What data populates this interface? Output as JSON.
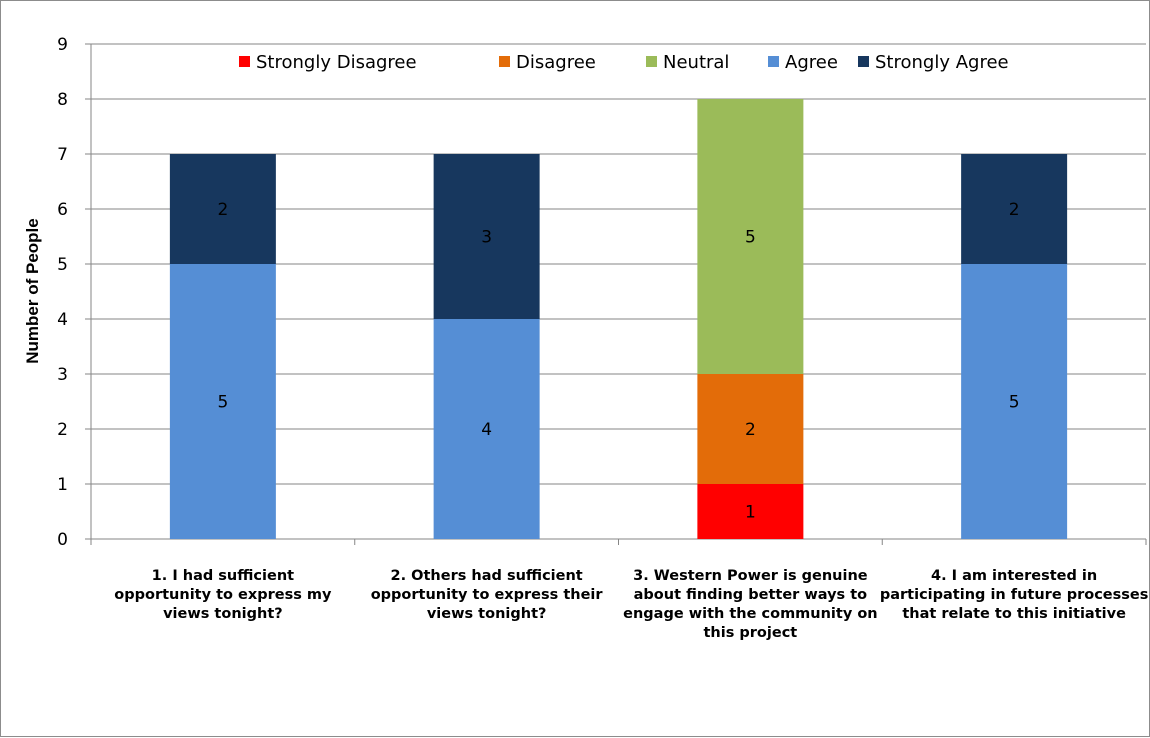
{
  "chart_data": {
    "type": "bar",
    "stacked": true,
    "title": "",
    "xlabel": "",
    "ylabel": "Number of People",
    "ylim": [
      0,
      9
    ],
    "yticks": [
      0,
      1,
      2,
      3,
      4,
      5,
      6,
      7,
      8,
      9
    ],
    "grid": true,
    "legend_position": "top",
    "categories": [
      [
        "1.      I had sufficient",
        "opportunity to express my",
        "views tonight?"
      ],
      [
        "2.      Others had sufficient",
        "opportunity to express their",
        "views tonight?"
      ],
      [
        "3.      Western Power is genuine",
        "about finding better ways to",
        "engage with the community on",
        "this project"
      ],
      [
        "4.      I am interested in",
        "participating in future processes",
        "that relate to this initiative"
      ]
    ],
    "series": [
      {
        "name": "Strongly Disagree",
        "color": "#ff0000",
        "values": [
          0,
          0,
          1,
          0
        ]
      },
      {
        "name": "Disagree",
        "color": "#e36c09",
        "values": [
          0,
          0,
          2,
          0
        ]
      },
      {
        "name": "Neutral",
        "color": "#9bbb59",
        "values": [
          0,
          0,
          5,
          0
        ]
      },
      {
        "name": "Agree",
        "color": "#558ed5",
        "values": [
          5,
          4,
          0,
          5
        ]
      },
      {
        "name": "Strongly Agree",
        "color": "#17375e",
        "values": [
          2,
          3,
          0,
          2
        ]
      }
    ]
  }
}
